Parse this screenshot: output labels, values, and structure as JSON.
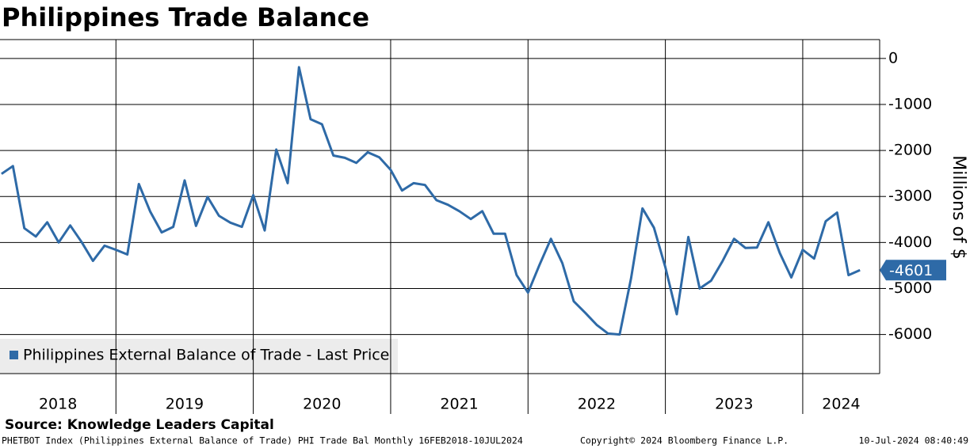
{
  "chart_data": {
    "type": "line",
    "title": "Philippines Trade Balance",
    "y_axis_label": "Millions of $",
    "source": "Source: Knowledge Leaders Capital",
    "footer_left": "PHETBOT Index (Philippines External Balance of Trade) PHI Trade Bal  Monthly 16FEB2018-10JUL2024",
    "footer_center": "Copyright© 2024 Bloomberg Finance L.P.",
    "footer_right": "10-Jul-2024 08:40:49",
    "legend_position": "lower-left",
    "grid": true,
    "xlim": [
      2018.156,
      2024.56
    ],
    "ylim": [
      -6850,
      410
    ],
    "yticks": [
      0,
      -1000,
      -2000,
      -3000,
      -4000,
      -5000,
      -6000
    ],
    "years": [
      2018,
      2019,
      2020,
      2021,
      2022,
      2023,
      2024
    ],
    "x": [
      2018.167,
      2018.25,
      2018.333,
      2018.417,
      2018.5,
      2018.583,
      2018.667,
      2018.75,
      2018.833,
      2018.917,
      2019.0,
      2019.083,
      2019.167,
      2019.25,
      2019.333,
      2019.417,
      2019.5,
      2019.583,
      2019.667,
      2019.75,
      2019.833,
      2019.917,
      2020.0,
      2020.083,
      2020.167,
      2020.25,
      2020.333,
      2020.417,
      2020.5,
      2020.583,
      2020.667,
      2020.75,
      2020.833,
      2020.917,
      2021.0,
      2021.083,
      2021.167,
      2021.25,
      2021.333,
      2021.417,
      2021.5,
      2021.583,
      2021.667,
      2021.75,
      2021.833,
      2021.917,
      2022.0,
      2022.083,
      2022.167,
      2022.25,
      2022.333,
      2022.417,
      2022.5,
      2022.583,
      2022.667,
      2022.75,
      2022.833,
      2022.917,
      2023.0,
      2023.083,
      2023.167,
      2023.25,
      2023.333,
      2023.417,
      2023.5,
      2023.583,
      2023.667,
      2023.75,
      2023.833,
      2023.917,
      2024.0,
      2024.083,
      2024.167,
      2024.25,
      2024.333,
      2024.417
    ],
    "series": [
      {
        "name": "Philippines External Balance of Trade - Last Price",
        "color": "#2e6aa7",
        "values": [
          -2510,
          -2340,
          -3690,
          -3870,
          -3560,
          -4000,
          -3630,
          -3990,
          -4400,
          -4070,
          -4160,
          -4260,
          -2730,
          -3330,
          -3780,
          -3660,
          -2650,
          -3640,
          -3010,
          -3420,
          -3570,
          -3660,
          -2970,
          -3740,
          -1980,
          -2710,
          -190,
          -1320,
          -1430,
          -2110,
          -2160,
          -2270,
          -2040,
          -2150,
          -2420,
          -2870,
          -2710,
          -2750,
          -3080,
          -3180,
          -3320,
          -3490,
          -3320,
          -3810,
          -3810,
          -4710,
          -5090,
          -4490,
          -3920,
          -4450,
          -5280,
          -5530,
          -5790,
          -5980,
          -6000,
          -4780,
          -3260,
          -3680,
          -4540,
          -5560,
          -3880,
          -5000,
          -4830,
          -4400,
          -3920,
          -4120,
          -4110,
          -3560,
          -4230,
          -4760,
          -4160,
          -4350,
          -3540,
          -3350,
          -4710,
          -4601
        ]
      }
    ]
  }
}
